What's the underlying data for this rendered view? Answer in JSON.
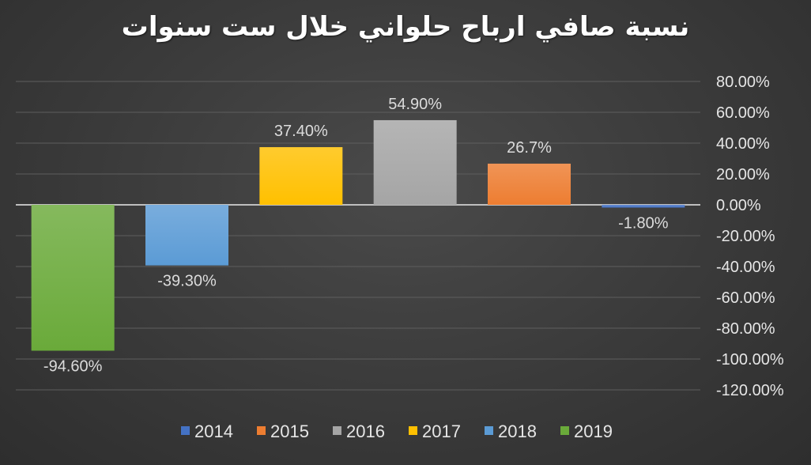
{
  "chart_data": {
    "type": "bar",
    "title": "نسبة صافي ارباح حلواني خلال ست سنوات",
    "xlabel": "",
    "ylabel": "",
    "ylim": [
      -120,
      80
    ],
    "y_ticks": [
      80,
      60,
      40,
      20,
      0,
      -20,
      -40,
      -60,
      -80,
      -100,
      -120
    ],
    "y_tick_labels": [
      "80.00%",
      "60.00%",
      "40.00%",
      "20.00%",
      "0.00%",
      "-20.00%",
      "-40.00%",
      "-60.00%",
      "-80.00%",
      "-100.00%",
      "-120.00%"
    ],
    "y_axis_position": "right",
    "grid": true,
    "legend_position": "bottom",
    "series": [
      {
        "name": "2019",
        "value": -94.6,
        "label": "-94.60%",
        "color": "#6aaa3a"
      },
      {
        "name": "2018",
        "value": -39.3,
        "label": "-39.30%",
        "color": "#5b9bd5"
      },
      {
        "name": "2017",
        "value": 37.4,
        "label": "37.40%",
        "color": "#ffc000"
      },
      {
        "name": "2016",
        "value": 54.9,
        "label": "54.90%",
        "color": "#a5a5a5"
      },
      {
        "name": "2015",
        "value": 26.7,
        "label": "26.7%",
        "color": "#ed7d31"
      },
      {
        "name": "2014",
        "value": -1.8,
        "label": "-1.80%",
        "color": "#4472c4"
      }
    ],
    "legend_order": [
      "2014",
      "2015",
      "2016",
      "2017",
      "2018",
      "2019"
    ]
  }
}
